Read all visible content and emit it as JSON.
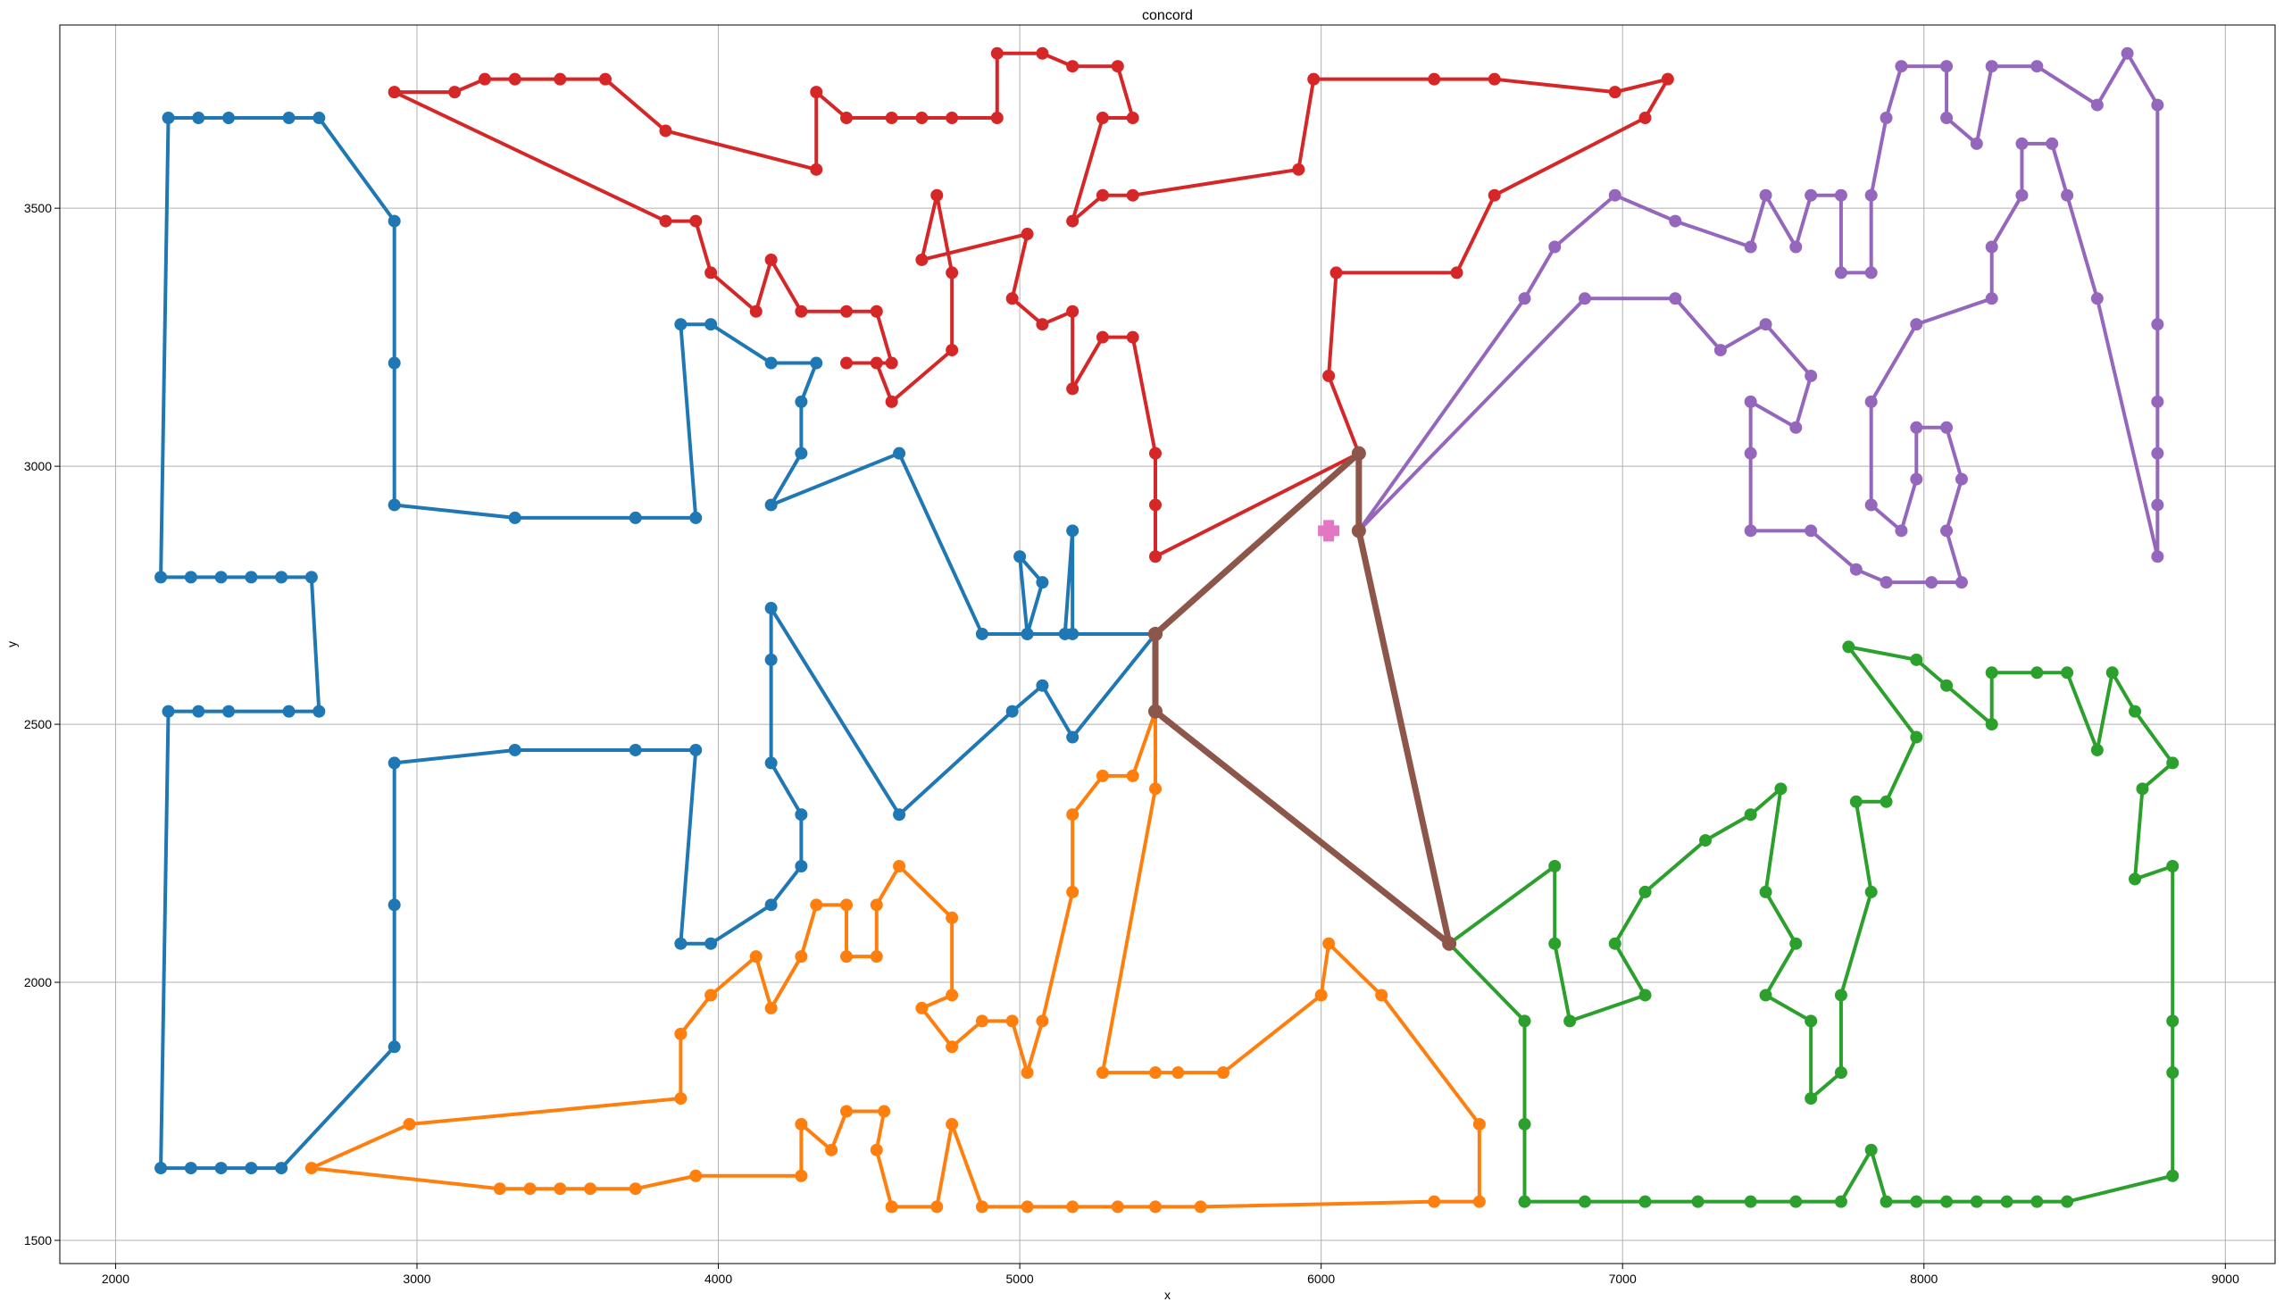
{
  "chart_data": {
    "type": "line",
    "title": "concord",
    "xlabel": "x",
    "ylabel": "y",
    "xlim": [
      1815,
      9165
    ],
    "ylim": [
      1455,
      3855
    ],
    "xticks": [
      2000,
      3000,
      4000,
      5000,
      6000,
      7000,
      8000,
      9000
    ],
    "yticks": [
      1500,
      2000,
      2500,
      3000,
      3500
    ],
    "grid": true,
    "series": [
      {
        "color": "#1f77b4",
        "points": [
          [
            5450,
            2675
          ],
          [
            5175,
            2675
          ],
          [
            5175,
            2875
          ],
          [
            5150,
            2675
          ],
          [
            5025,
            2675
          ],
          [
            5000,
            2825
          ],
          [
            5075,
            2775
          ],
          [
            5025,
            2675
          ],
          [
            4875,
            2675
          ],
          [
            4600,
            3025
          ],
          [
            4175,
            2925
          ],
          [
            4275,
            3025
          ],
          [
            4275,
            3125
          ],
          [
            4325,
            3200
          ],
          [
            4175,
            3200
          ],
          [
            3975,
            3275
          ],
          [
            3875,
            3275
          ],
          [
            3925,
            2900
          ],
          [
            3725,
            2900
          ],
          [
            3325,
            2900
          ],
          [
            2925,
            2925
          ],
          [
            2925,
            3200
          ],
          [
            2925,
            3475
          ],
          [
            2675,
            3675
          ],
          [
            2575,
            3675
          ],
          [
            2375,
            3675
          ],
          [
            2275,
            3675
          ],
          [
            2175,
            3675
          ],
          [
            2150,
            2785
          ],
          [
            2250,
            2785
          ],
          [
            2350,
            2785
          ],
          [
            2450,
            2785
          ],
          [
            2550,
            2785
          ],
          [
            2650,
            2785
          ],
          [
            2675,
            2525
          ],
          [
            2575,
            2525
          ],
          [
            2375,
            2525
          ],
          [
            2275,
            2525
          ],
          [
            2175,
            2525
          ],
          [
            2150,
            1640
          ],
          [
            2250,
            1640
          ],
          [
            2350,
            1640
          ],
          [
            2450,
            1640
          ],
          [
            2550,
            1640
          ],
          [
            2925,
            1875
          ],
          [
            2925,
            2150
          ],
          [
            2925,
            2425
          ],
          [
            3325,
            2450
          ],
          [
            3725,
            2450
          ],
          [
            3925,
            2450
          ],
          [
            3875,
            2075
          ],
          [
            3975,
            2075
          ],
          [
            4175,
            2150
          ],
          [
            4275,
            2225
          ],
          [
            4275,
            2325
          ],
          [
            4175,
            2425
          ],
          [
            4175,
            2625
          ],
          [
            4175,
            2725
          ],
          [
            4600,
            2325
          ],
          [
            4975,
            2525
          ],
          [
            5075,
            2575
          ],
          [
            5175,
            2475
          ],
          [
            5450,
            2675
          ]
        ]
      },
      {
        "color": "#ff7f0e",
        "points": [
          [
            5450,
            2525
          ],
          [
            5375,
            2400
          ],
          [
            5275,
            2400
          ],
          [
            5175,
            2325
          ],
          [
            5175,
            2175
          ],
          [
            5075,
            1925
          ],
          [
            5025,
            1825
          ],
          [
            4975,
            1925
          ],
          [
            4875,
            1925
          ],
          [
            4775,
            1875
          ],
          [
            4675,
            1950
          ],
          [
            4775,
            1975
          ],
          [
            4775,
            2125
          ],
          [
            4600,
            2225
          ],
          [
            4525,
            2150
          ],
          [
            4525,
            2050
          ],
          [
            4425,
            2050
          ],
          [
            4425,
            2150
          ],
          [
            4325,
            2150
          ],
          [
            4275,
            2050
          ],
          [
            4175,
            1950
          ],
          [
            4125,
            2050
          ],
          [
            3975,
            1975
          ],
          [
            3875,
            1900
          ],
          [
            3875,
            1775
          ],
          [
            2975,
            1725
          ],
          [
            2650,
            1640
          ],
          [
            3275,
            1600
          ],
          [
            3375,
            1600
          ],
          [
            3475,
            1600
          ],
          [
            3575,
            1600
          ],
          [
            3725,
            1600
          ],
          [
            3925,
            1625
          ],
          [
            4275,
            1625
          ],
          [
            4275,
            1725
          ],
          [
            4375,
            1675
          ],
          [
            4425,
            1750
          ],
          [
            4550,
            1750
          ],
          [
            4525,
            1675
          ],
          [
            4575,
            1565
          ],
          [
            4725,
            1565
          ],
          [
            4775,
            1725
          ],
          [
            4875,
            1565
          ],
          [
            5025,
            1565
          ],
          [
            5175,
            1565
          ],
          [
            5325,
            1565
          ],
          [
            5450,
            1565
          ],
          [
            5600,
            1565
          ],
          [
            6375,
            1575
          ],
          [
            6525,
            1575
          ],
          [
            6525,
            1725
          ],
          [
            6200,
            1975
          ],
          [
            6025,
            2075
          ],
          [
            6000,
            1975
          ],
          [
            5675,
            1825
          ],
          [
            5525,
            1825
          ],
          [
            5450,
            1825
          ],
          [
            5275,
            1825
          ],
          [
            5450,
            2375
          ],
          [
            5450,
            2525
          ]
        ]
      },
      {
        "color": "#2ca02c",
        "points": [
          [
            6425,
            2075
          ],
          [
            6675,
            1925
          ],
          [
            6675,
            1725
          ],
          [
            6675,
            1575
          ],
          [
            6875,
            1575
          ],
          [
            7075,
            1575
          ],
          [
            7250,
            1575
          ],
          [
            7425,
            1575
          ],
          [
            7575,
            1575
          ],
          [
            7725,
            1575
          ],
          [
            7825,
            1675
          ],
          [
            7875,
            1575
          ],
          [
            7975,
            1575
          ],
          [
            8075,
            1575
          ],
          [
            8175,
            1575
          ],
          [
            8275,
            1575
          ],
          [
            8375,
            1575
          ],
          [
            8475,
            1575
          ],
          [
            8825,
            1625
          ],
          [
            8825,
            1825
          ],
          [
            8825,
            1925
          ],
          [
            8825,
            2225
          ],
          [
            8700,
            2200
          ],
          [
            8725,
            2375
          ],
          [
            8825,
            2425
          ],
          [
            8700,
            2525
          ],
          [
            8625,
            2600
          ],
          [
            8575,
            2450
          ],
          [
            8475,
            2600
          ],
          [
            8375,
            2600
          ],
          [
            8225,
            2600
          ],
          [
            8225,
            2500
          ],
          [
            8075,
            2575
          ],
          [
            7975,
            2625
          ],
          [
            7750,
            2650
          ],
          [
            7975,
            2475
          ],
          [
            7875,
            2350
          ],
          [
            7775,
            2350
          ],
          [
            7825,
            2175
          ],
          [
            7725,
            1975
          ],
          [
            7725,
            1825
          ],
          [
            7625,
            1775
          ],
          [
            7625,
            1925
          ],
          [
            7475,
            1975
          ],
          [
            7575,
            2075
          ],
          [
            7475,
            2175
          ],
          [
            7525,
            2375
          ],
          [
            7425,
            2325
          ],
          [
            7275,
            2275
          ],
          [
            7075,
            2175
          ],
          [
            6975,
            2075
          ],
          [
            7075,
            1975
          ],
          [
            6825,
            1925
          ],
          [
            6775,
            2075
          ],
          [
            6775,
            2225
          ],
          [
            6425,
            2075
          ]
        ]
      },
      {
        "color": "#d62728",
        "points": [
          [
            6125,
            3025
          ],
          [
            6025,
            3175
          ],
          [
            6050,
            3375
          ],
          [
            6450,
            3375
          ],
          [
            6575,
            3525
          ],
          [
            7075,
            3675
          ],
          [
            7150,
            3750
          ],
          [
            6975,
            3725
          ],
          [
            6575,
            3750
          ],
          [
            6375,
            3750
          ],
          [
            5975,
            3750
          ],
          [
            5925,
            3575
          ],
          [
            5375,
            3525
          ],
          [
            5275,
            3525
          ],
          [
            5175,
            3475
          ],
          [
            5275,
            3675
          ],
          [
            5375,
            3675
          ],
          [
            5325,
            3775
          ],
          [
            5175,
            3775
          ],
          [
            5075,
            3800
          ],
          [
            4925,
            3800
          ],
          [
            4925,
            3675
          ],
          [
            4775,
            3675
          ],
          [
            4675,
            3675
          ],
          [
            4575,
            3675
          ],
          [
            4425,
            3675
          ],
          [
            4325,
            3725
          ],
          [
            4325,
            3575
          ],
          [
            3825,
            3650
          ],
          [
            3625,
            3750
          ],
          [
            3475,
            3750
          ],
          [
            3325,
            3750
          ],
          [
            3225,
            3750
          ],
          [
            3125,
            3725
          ],
          [
            2925,
            3725
          ],
          [
            3825,
            3475
          ],
          [
            3925,
            3475
          ],
          [
            3975,
            3375
          ],
          [
            4125,
            3300
          ],
          [
            4175,
            3400
          ],
          [
            4275,
            3300
          ],
          [
            4425,
            3300
          ],
          [
            4525,
            3300
          ],
          [
            4575,
            3200
          ],
          [
            4425,
            3200
          ],
          [
            4525,
            3200
          ],
          [
            4575,
            3125
          ],
          [
            4775,
            3225
          ],
          [
            4775,
            3375
          ],
          [
            4725,
            3525
          ],
          [
            4675,
            3400
          ],
          [
            5025,
            3450
          ],
          [
            4975,
            3325
          ],
          [
            5075,
            3275
          ],
          [
            5175,
            3300
          ],
          [
            5175,
            3150
          ],
          [
            5275,
            3250
          ],
          [
            5375,
            3250
          ],
          [
            5450,
            3025
          ],
          [
            5450,
            2925
          ],
          [
            5450,
            2825
          ],
          [
            6125,
            3025
          ]
        ]
      },
      {
        "color": "#9467bd",
        "points": [
          [
            6125,
            2875
          ],
          [
            6675,
            3325
          ],
          [
            6775,
            3425
          ],
          [
            6975,
            3525
          ],
          [
            7175,
            3475
          ],
          [
            7425,
            3425
          ],
          [
            7475,
            3525
          ],
          [
            7575,
            3425
          ],
          [
            7625,
            3525
          ],
          [
            7725,
            3525
          ],
          [
            7725,
            3375
          ],
          [
            7825,
            3375
          ],
          [
            7825,
            3525
          ],
          [
            7875,
            3675
          ],
          [
            7925,
            3775
          ],
          [
            8075,
            3775
          ],
          [
            8075,
            3675
          ],
          [
            8175,
            3625
          ],
          [
            8225,
            3775
          ],
          [
            8375,
            3775
          ],
          [
            8575,
            3700
          ],
          [
            8675,
            3800
          ],
          [
            8775,
            3700
          ],
          [
            8775,
            3275
          ],
          [
            8775,
            3125
          ],
          [
            8775,
            3025
          ],
          [
            8775,
            2925
          ],
          [
            8775,
            2825
          ],
          [
            8575,
            3325
          ],
          [
            8475,
            3525
          ],
          [
            8425,
            3625
          ],
          [
            8325,
            3625
          ],
          [
            8325,
            3525
          ],
          [
            8225,
            3425
          ],
          [
            8225,
            3325
          ],
          [
            7975,
            3275
          ],
          [
            7825,
            3125
          ],
          [
            7825,
            2925
          ],
          [
            7925,
            2875
          ],
          [
            7975,
            2975
          ],
          [
            7975,
            3075
          ],
          [
            8075,
            3075
          ],
          [
            8125,
            2975
          ],
          [
            8075,
            2875
          ],
          [
            8125,
            2775
          ],
          [
            8025,
            2775
          ],
          [
            7875,
            2775
          ],
          [
            7775,
            2800
          ],
          [
            7625,
            2875
          ],
          [
            7425,
            2875
          ],
          [
            7425,
            3025
          ],
          [
            7425,
            3125
          ],
          [
            7575,
            3075
          ],
          [
            7625,
            3175
          ],
          [
            7475,
            3275
          ],
          [
            7325,
            3225
          ],
          [
            7175,
            3325
          ],
          [
            6875,
            3325
          ],
          [
            6125,
            2875
          ]
        ]
      },
      {
        "color": "#8c564b",
        "thick": true,
        "points": [
          [
            5450,
            2675
          ],
          [
            6125,
            3025
          ],
          [
            6125,
            2875
          ],
          [
            6425,
            2075
          ],
          [
            5450,
            2525
          ],
          [
            5450,
            2675
          ]
        ]
      }
    ],
    "depot": {
      "color": "#e377c2",
      "point": [
        6025,
        2875
      ]
    }
  }
}
